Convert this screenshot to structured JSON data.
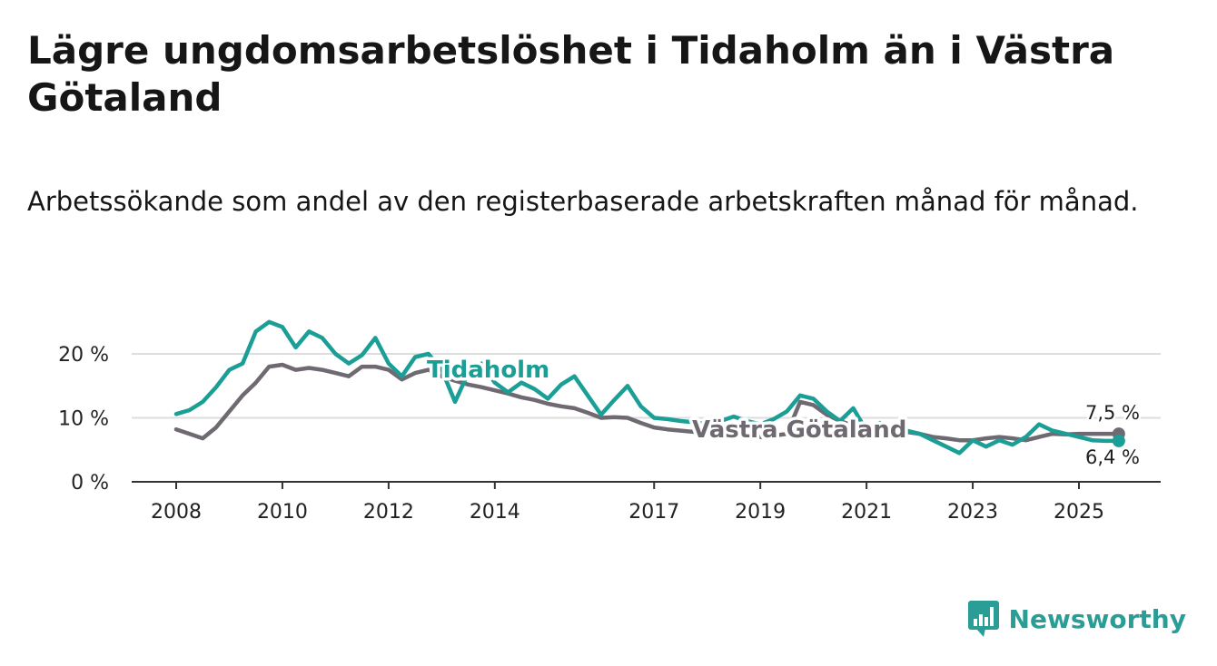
{
  "title": "Lägre ungdomsarbetslöshet i Tidaholm än i Västra Götaland",
  "subtitle": "Arbetssökande som andel av den registerbaserade arbetskraften månad för månad.",
  "brand": {
    "name": "Newsworthy",
    "icon": "bar-chart-badge-icon"
  },
  "colors": {
    "tidaholm": "#1a9e96",
    "vastra_gotaland": "#6f6a72",
    "grid": "#dddddd",
    "axis": "#333333",
    "brand": "#2a9d96"
  },
  "chart_data": {
    "type": "line",
    "title": "Lägre ungdomsarbetslöshet i Tidaholm än i Västra Götaland",
    "xlabel": "",
    "ylabel": "",
    "xlim": [
      2007.5,
      2026.5
    ],
    "ylim": [
      0,
      20
    ],
    "grid": true,
    "y_ticks": [
      0,
      10,
      20
    ],
    "y_tick_labels": [
      "0 %",
      "10 %",
      "20 %"
    ],
    "x_ticks": [
      2008,
      2010,
      2012,
      2014,
      2017,
      2019,
      2021,
      2023,
      2025
    ],
    "x_tick_labels": [
      "2008",
      "2010",
      "2012",
      "2014",
      "2017",
      "2019",
      "2021",
      "2023",
      "2025"
    ],
    "series": [
      {
        "name": "Tidaholm",
        "label": "Tidaholm",
        "color": "#1a9e96",
        "x": [
          2008.0,
          2008.25,
          2008.5,
          2008.75,
          2009.0,
          2009.25,
          2009.5,
          2009.75,
          2010.0,
          2010.25,
          2010.5,
          2010.75,
          2011.0,
          2011.25,
          2011.5,
          2011.75,
          2012.0,
          2012.25,
          2012.5,
          2012.75,
          2013.0,
          2013.25,
          2013.5,
          2013.75,
          2014.0,
          2014.25,
          2014.5,
          2014.75,
          2015.0,
          2015.25,
          2015.5,
          2015.75,
          2016.0,
          2016.25,
          2016.5,
          2016.75,
          2017.0,
          2017.25,
          2017.5,
          2017.75,
          2018.0,
          2018.25,
          2018.5,
          2018.75,
          2019.0,
          2019.25,
          2019.5,
          2019.75,
          2020.0,
          2020.25,
          2020.5,
          2020.75,
          2021.0,
          2021.25,
          2021.5,
          2021.75,
          2022.0,
          2022.25,
          2022.5,
          2022.75,
          2023.0,
          2023.25,
          2023.5,
          2023.75,
          2024.0,
          2024.25,
          2024.5,
          2024.75,
          2025.0,
          2025.25,
          2025.5,
          2025.75
        ],
        "values": [
          10.6,
          11.2,
          12.5,
          14.8,
          17.5,
          18.5,
          23.5,
          25.0,
          24.2,
          21.0,
          23.5,
          22.5,
          20.0,
          18.5,
          19.8,
          22.5,
          18.5,
          16.5,
          19.5,
          20.0,
          17.5,
          12.5,
          17.0,
          18.5,
          15.5,
          14.0,
          15.5,
          14.5,
          13.0,
          15.2,
          16.5,
          13.5,
          10.5,
          12.8,
          15.0,
          11.8,
          10.0,
          9.8,
          9.5,
          9.3,
          9.0,
          9.5,
          10.2,
          9.5,
          9.0,
          9.8,
          11.0,
          13.5,
          13.0,
          11.0,
          9.5,
          11.5,
          8.0,
          9.2,
          7.0,
          8.0,
          7.5,
          6.5,
          5.5,
          4.5,
          6.5,
          5.5,
          6.5,
          5.8,
          7.0,
          9.0,
          8.0,
          7.5,
          7.0,
          6.5,
          6.4,
          6.4
        ]
      },
      {
        "name": "Västra Götaland",
        "label": "Västra Götaland",
        "color": "#6f6a72",
        "x": [
          2008.0,
          2008.25,
          2008.5,
          2008.75,
          2009.0,
          2009.25,
          2009.5,
          2009.75,
          2010.0,
          2010.25,
          2010.5,
          2010.75,
          2011.0,
          2011.25,
          2011.5,
          2011.75,
          2012.0,
          2012.25,
          2012.5,
          2012.75,
          2013.0,
          2013.25,
          2013.5,
          2013.75,
          2014.0,
          2014.25,
          2014.5,
          2014.75,
          2015.0,
          2015.25,
          2015.5,
          2015.75,
          2016.0,
          2016.25,
          2016.5,
          2016.75,
          2017.0,
          2017.25,
          2017.5,
          2017.75,
          2018.0,
          2018.25,
          2018.5,
          2018.75,
          2019.0,
          2019.25,
          2019.5,
          2019.75,
          2020.0,
          2020.25,
          2020.5,
          2020.75,
          2021.0,
          2021.25,
          2021.5,
          2021.75,
          2022.0,
          2022.25,
          2022.5,
          2022.75,
          2023.0,
          2023.25,
          2023.5,
          2023.75,
          2024.0,
          2024.25,
          2024.5,
          2024.75,
          2025.0,
          2025.25,
          2025.5,
          2025.75
        ],
        "values": [
          8.2,
          7.5,
          6.8,
          8.5,
          11.0,
          13.5,
          15.5,
          18.0,
          18.3,
          17.5,
          17.8,
          17.5,
          17.0,
          16.5,
          18.0,
          18.0,
          17.5,
          16.0,
          17.0,
          17.5,
          16.5,
          15.8,
          15.2,
          14.8,
          14.3,
          13.8,
          13.2,
          12.8,
          12.2,
          11.8,
          11.5,
          10.8,
          10.0,
          10.1,
          10.0,
          9.2,
          8.5,
          8.2,
          8.0,
          7.8,
          7.5,
          7.7,
          7.8,
          7.5,
          7.0,
          7.2,
          7.5,
          12.5,
          12.0,
          10.5,
          9.5,
          8.8,
          8.5,
          8.2,
          8.0,
          7.8,
          7.5,
          7.0,
          6.8,
          6.5,
          6.5,
          6.8,
          7.0,
          6.8,
          6.5,
          7.0,
          7.5,
          7.4,
          7.5,
          7.5,
          7.5,
          7.5
        ]
      }
    ],
    "end_labels": [
      "7,5 %",
      "6,4 %"
    ]
  }
}
